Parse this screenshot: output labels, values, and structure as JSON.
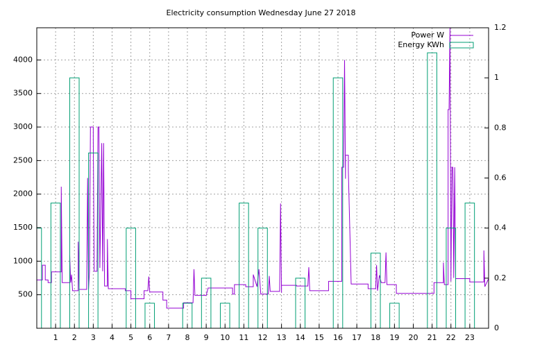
{
  "chart_data": {
    "type": "line",
    "title": "Electricity consumption Wednesday June 27 2018",
    "xlim": [
      0,
      24
    ],
    "xticks": [
      1,
      2,
      3,
      4,
      5,
      6,
      7,
      8,
      9,
      10,
      11,
      12,
      13,
      14,
      15,
      16,
      17,
      18,
      19,
      20,
      21,
      22,
      23
    ],
    "ylim": [
      0,
      4480
    ],
    "yticks": [
      500,
      1000,
      1500,
      2000,
      2500,
      3000,
      3500,
      4000
    ],
    "y2lim": [
      0,
      1.2
    ],
    "y2ticks": [
      0,
      0.2,
      0.4,
      0.6,
      0.8,
      1,
      1.2
    ],
    "grid": true,
    "legend": "top-right",
    "series": [
      {
        "name": "Power W",
        "color": "#9400d3",
        "type": "line",
        "x": [
          0,
          0.3,
          0.3,
          0.45,
          0.45,
          0.6,
          0.6,
          0.78,
          0.78,
          1.3,
          1.3,
          1.35,
          1.75,
          1.75,
          1.8,
          1.85,
          1.9,
          2.2,
          2.2,
          2.25,
          2.65,
          2.7,
          2.75,
          2.8,
          2.85,
          3.0,
          3.0,
          3.05,
          3.2,
          3.25,
          3.3,
          3.35,
          3.45,
          3.5,
          3.55,
          3.6,
          3.75,
          3.75,
          3.8,
          4.7,
          4.7,
          5.0,
          5.0,
          5.7,
          5.7,
          5.9,
          5.95,
          6.0,
          6.7,
          6.7,
          6.9,
          6.9,
          7.8,
          7.8,
          8.3,
          8.35,
          8.4,
          9.0,
          9.1,
          10.4,
          10.4,
          10.5,
          10.5,
          11.1,
          11.1,
          11.5,
          11.5,
          11.7,
          11.8,
          11.9,
          12.3,
          12.35,
          12.4,
          12.9,
          12.95,
          13.0,
          13.0,
          13.8,
          13.8,
          14.4,
          14.45,
          14.5,
          15.5,
          15.5,
          16.2,
          16.2,
          16.3,
          16.35,
          16.4,
          16.4,
          16.55,
          16.55,
          16.7,
          17.6,
          17.6,
          18.0,
          18.05,
          18.1,
          18.2,
          18.3,
          18.5,
          18.55,
          18.6,
          19.1,
          19.1,
          21.1,
          21.1,
          21.6,
          21.6,
          21.65,
          21.85,
          21.85,
          21.9,
          21.95,
          22.0,
          22.05,
          22.1,
          22.15,
          22.2,
          22.25,
          23.0,
          23.0,
          23.75,
          23.75,
          23.8,
          24
        ],
        "values": [
          720,
          720,
          940,
          940,
          720,
          720,
          680,
          680,
          840,
          840,
          2110,
          680,
          680,
          1090,
          680,
          800,
          560,
          560,
          1290,
          580,
          580,
          2240,
          580,
          850,
          3000,
          3000,
          2830,
          850,
          850,
          3000,
          3000,
          900,
          2760,
          850,
          2760,
          630,
          630,
          1330,
          590,
          590,
          560,
          560,
          440,
          440,
          560,
          560,
          770,
          540,
          540,
          420,
          420,
          300,
          300,
          380,
          380,
          880,
          490,
          490,
          600,
          600,
          510,
          510,
          650,
          650,
          620,
          620,
          800,
          620,
          880,
          510,
          510,
          780,
          550,
          550,
          1860,
          530,
          640,
          640,
          630,
          630,
          910,
          560,
          560,
          700,
          700,
          2400,
          2400,
          4000,
          2230,
          2580,
          2580,
          2350,
          660,
          660,
          590,
          590,
          940,
          560,
          790,
          680,
          680,
          1130,
          650,
          650,
          520,
          520,
          680,
          680,
          980,
          650,
          650,
          3260,
          3260,
          4480,
          700,
          2400,
          2400,
          750,
          2400,
          740,
          740,
          690,
          690,
          1160,
          620,
          740
        ]
      },
      {
        "name": "Energy KWh",
        "color": "#009e73",
        "type": "bar",
        "axis": "y2",
        "x": [
          0,
          1,
          2,
          3,
          4,
          5,
          6,
          7,
          8,
          9,
          10,
          11,
          12,
          13,
          14,
          15,
          16,
          17,
          18,
          19,
          20,
          21,
          22,
          23
        ],
        "values": [
          0.4,
          0.5,
          1.0,
          0.7,
          0,
          0.4,
          0.1,
          0,
          0.1,
          0.2,
          0.1,
          0.5,
          0.4,
          0,
          0.2,
          0,
          1.0,
          0,
          0.3,
          0.1,
          0,
          1.1,
          0.4,
          0.5
        ]
      }
    ]
  }
}
